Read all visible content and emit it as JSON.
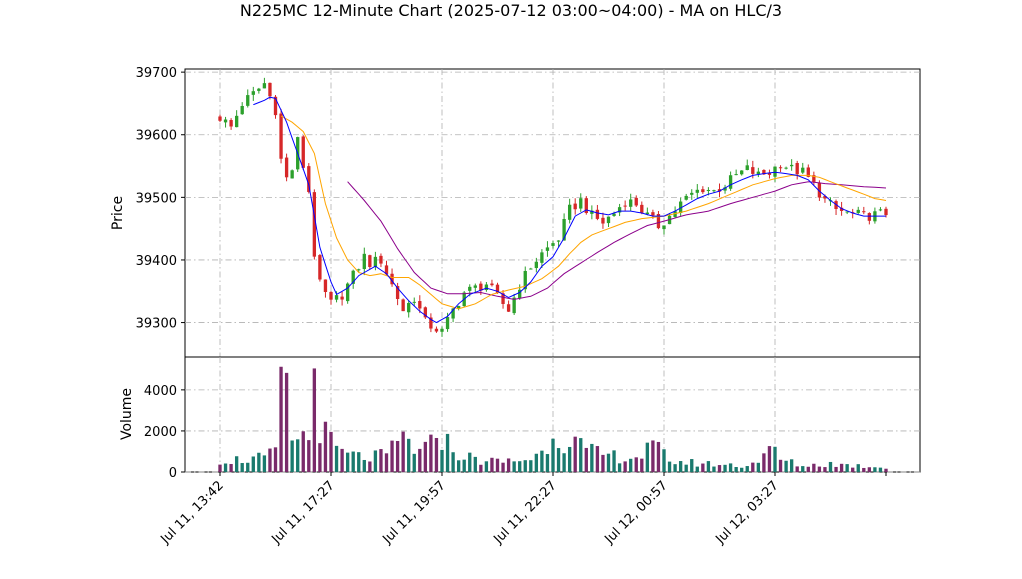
{
  "chart_data": {
    "type": "candlestick",
    "title": "N225MC 12-Minute Chart (2025-07-12 03:00~04:00) - MA on HLC/3",
    "price_panel": {
      "ylabel": "Price",
      "ylim": [
        39245,
        39705
      ],
      "yticks": [
        39300,
        39400,
        39500,
        39600,
        39700
      ],
      "grid": true
    },
    "volume_panel": {
      "ylabel": "Volume",
      "ylim": [
        0,
        5600
      ],
      "yticks": [
        0,
        2000,
        4000
      ],
      "grid": true
    },
    "x_tick_labels": [
      "Jul 11, 13:42",
      "Jul 11, 17:27",
      "Jul 11, 19:57",
      "Jul 11, 22:27",
      "Jul 12, 00:57",
      "Jul 12, 03:27"
    ],
    "x_tick_index": [
      0,
      20,
      40,
      60,
      80,
      100
    ],
    "n_bars": 121,
    "colors": {
      "up": "#2ca02c",
      "down": "#d62728",
      "vol_up": "#1a7a6e",
      "vol_down": "#7a2a6a",
      "ma_fast": "#0000ff",
      "ma_mid": "#ffa500",
      "ma_slow": "#8b008b"
    },
    "close_keypoints": [
      [
        0,
        39628
      ],
      [
        2,
        39612
      ],
      [
        4,
        39650
      ],
      [
        6,
        39665
      ],
      [
        8,
        39682
      ],
      [
        10,
        39640
      ],
      [
        11,
        39560
      ],
      [
        12,
        39530
      ],
      [
        13,
        39545
      ],
      [
        14,
        39590
      ],
      [
        16,
        39510
      ],
      [
        17,
        39410
      ],
      [
        18,
        39360
      ],
      [
        20,
        39330
      ],
      [
        22,
        39345
      ],
      [
        24,
        39375
      ],
      [
        26,
        39405
      ],
      [
        27,
        39395
      ],
      [
        29,
        39400
      ],
      [
        31,
        39360
      ],
      [
        33,
        39320
      ],
      [
        35,
        39340
      ],
      [
        37,
        39300
      ],
      [
        40,
        39285
      ],
      [
        42,
        39320
      ],
      [
        44,
        39348
      ],
      [
        46,
        39355
      ],
      [
        48,
        39362
      ],
      [
        50,
        39340
      ],
      [
        52,
        39320
      ],
      [
        54,
        39360
      ],
      [
        56,
        39390
      ],
      [
        58,
        39410
      ],
      [
        61,
        39435
      ],
      [
        63,
        39480
      ],
      [
        65,
        39495
      ],
      [
        67,
        39470
      ],
      [
        69,
        39460
      ],
      [
        71,
        39475
      ],
      [
        73,
        39495
      ],
      [
        75,
        39490
      ],
      [
        77,
        39470
      ],
      [
        79,
        39455
      ],
      [
        81,
        39470
      ],
      [
        83,
        39490
      ],
      [
        85,
        39505
      ],
      [
        87,
        39515
      ],
      [
        89,
        39510
      ],
      [
        91,
        39520
      ],
      [
        93,
        39535
      ],
      [
        95,
        39545
      ],
      [
        97,
        39535
      ],
      [
        99,
        39540
      ],
      [
        101,
        39555
      ],
      [
        103,
        39545
      ],
      [
        105,
        39540
      ],
      [
        107,
        39520
      ],
      [
        109,
        39495
      ],
      [
        111,
        39480
      ],
      [
        113,
        39475
      ],
      [
        116,
        39470
      ],
      [
        118,
        39472
      ],
      [
        120,
        39475
      ]
    ],
    "volume_keypoints": [
      [
        0,
        600
      ],
      [
        4,
        600
      ],
      [
        8,
        700
      ],
      [
        10,
        900
      ],
      [
        11,
        5000
      ],
      [
        12,
        3500
      ],
      [
        13,
        1500
      ],
      [
        14,
        1900
      ],
      [
        16,
        1500
      ],
      [
        17,
        5200
      ],
      [
        18,
        2400
      ],
      [
        19,
        1800
      ],
      [
        20,
        1400
      ],
      [
        22,
        900
      ],
      [
        26,
        700
      ],
      [
        30,
        800
      ],
      [
        33,
        1700
      ],
      [
        36,
        900
      ],
      [
        38,
        1300
      ],
      [
        39,
        2100
      ],
      [
        40,
        1800
      ],
      [
        42,
        1000
      ],
      [
        46,
        600
      ],
      [
        50,
        500
      ],
      [
        55,
        600
      ],
      [
        58,
        900
      ],
      [
        60,
        2100
      ],
      [
        61,
        1600
      ],
      [
        63,
        1700
      ],
      [
        66,
        1000
      ],
      [
        70,
        800
      ],
      [
        75,
        700
      ],
      [
        78,
        1200
      ],
      [
        82,
        500
      ],
      [
        88,
        400
      ],
      [
        95,
        300
      ],
      [
        100,
        1100
      ],
      [
        101,
        600
      ],
      [
        105,
        300
      ],
      [
        110,
        400
      ],
      [
        115,
        300
      ],
      [
        120,
        250
      ]
    ],
    "ma_fast_keypoints": [
      [
        6,
        39648
      ],
      [
        8,
        39655
      ],
      [
        9,
        39660
      ],
      [
        10,
        39658
      ],
      [
        12,
        39620
      ],
      [
        14,
        39570
      ],
      [
        16,
        39520
      ],
      [
        17,
        39470
      ],
      [
        18,
        39420
      ],
      [
        20,
        39365
      ],
      [
        21,
        39345
      ],
      [
        23,
        39355
      ],
      [
        25,
        39375
      ],
      [
        27,
        39385
      ],
      [
        28,
        39390
      ],
      [
        30,
        39378
      ],
      [
        32,
        39355
      ],
      [
        34,
        39335
      ],
      [
        36,
        39318
      ],
      [
        38,
        39305
      ],
      [
        39,
        39300
      ],
      [
        41,
        39310
      ],
      [
        43,
        39330
      ],
      [
        45,
        39345
      ],
      [
        48,
        39355
      ],
      [
        50,
        39350
      ],
      [
        52,
        39340
      ],
      [
        54,
        39348
      ],
      [
        56,
        39365
      ],
      [
        58,
        39390
      ],
      [
        60,
        39405
      ],
      [
        62,
        39435
      ],
      [
        64,
        39470
      ],
      [
        66,
        39480
      ],
      [
        68,
        39475
      ],
      [
        70,
        39472
      ],
      [
        72,
        39478
      ],
      [
        74,
        39478
      ],
      [
        76,
        39475
      ],
      [
        78,
        39470
      ],
      [
        80,
        39470
      ],
      [
        82,
        39478
      ],
      [
        84,
        39488
      ],
      [
        86,
        39498
      ],
      [
        88,
        39505
      ],
      [
        90,
        39510
      ],
      [
        92,
        39520
      ],
      [
        94,
        39528
      ],
      [
        96,
        39535
      ],
      [
        98,
        39538
      ],
      [
        100,
        39540
      ],
      [
        102,
        39538
      ],
      [
        104,
        39535
      ],
      [
        106,
        39528
      ],
      [
        108,
        39510
      ],
      [
        110,
        39495
      ],
      [
        112,
        39482
      ],
      [
        114,
        39475
      ],
      [
        116,
        39470
      ],
      [
        118,
        39470
      ],
      [
        120,
        39470
      ]
    ],
    "ma_mid_keypoints": [
      [
        11,
        39630
      ],
      [
        13,
        39620
      ],
      [
        15,
        39605
      ],
      [
        17,
        39570
      ],
      [
        19,
        39490
      ],
      [
        21,
        39435
      ],
      [
        23,
        39400
      ],
      [
        25,
        39380
      ],
      [
        27,
        39375
      ],
      [
        29,
        39378
      ],
      [
        31,
        39372
      ],
      [
        34,
        39372
      ],
      [
        36,
        39360
      ],
      [
        38,
        39345
      ],
      [
        40,
        39330
      ],
      [
        43,
        39322
      ],
      [
        46,
        39330
      ],
      [
        49,
        39345
      ],
      [
        52,
        39352
      ],
      [
        55,
        39358
      ],
      [
        58,
        39370
      ],
      [
        61,
        39390
      ],
      [
        63,
        39410
      ],
      [
        65,
        39428
      ],
      [
        67,
        39440
      ],
      [
        70,
        39450
      ],
      [
        73,
        39460
      ],
      [
        76,
        39466
      ],
      [
        80,
        39470
      ],
      [
        84,
        39478
      ],
      [
        88,
        39490
      ],
      [
        92,
        39505
      ],
      [
        96,
        39520
      ],
      [
        100,
        39530
      ],
      [
        103,
        39535
      ],
      [
        106,
        39535
      ],
      [
        108,
        39532
      ],
      [
        110,
        39525
      ],
      [
        113,
        39515
      ],
      [
        116,
        39505
      ],
      [
        118,
        39498
      ],
      [
        120,
        39495
      ]
    ],
    "ma_slow_keypoints": [
      [
        23,
        39525
      ],
      [
        26,
        39495
      ],
      [
        29,
        39462
      ],
      [
        32,
        39418
      ],
      [
        35,
        39380
      ],
      [
        38,
        39355
      ],
      [
        41,
        39346
      ],
      [
        44,
        39346
      ],
      [
        47,
        39348
      ],
      [
        50,
        39342
      ],
      [
        53,
        39337
      ],
      [
        56,
        39342
      ],
      [
        59,
        39355
      ],
      [
        62,
        39378
      ],
      [
        65,
        39395
      ],
      [
        68,
        39412
      ],
      [
        71,
        39428
      ],
      [
        74,
        39442
      ],
      [
        77,
        39455
      ],
      [
        80,
        39462
      ],
      [
        84,
        39472
      ],
      [
        88,
        39478
      ],
      [
        92,
        39490
      ],
      [
        96,
        39500
      ],
      [
        100,
        39510
      ],
      [
        103,
        39520
      ],
      [
        106,
        39525
      ],
      [
        109,
        39522
      ],
      [
        112,
        39520
      ],
      [
        116,
        39517
      ],
      [
        120,
        39515
      ]
    ]
  }
}
